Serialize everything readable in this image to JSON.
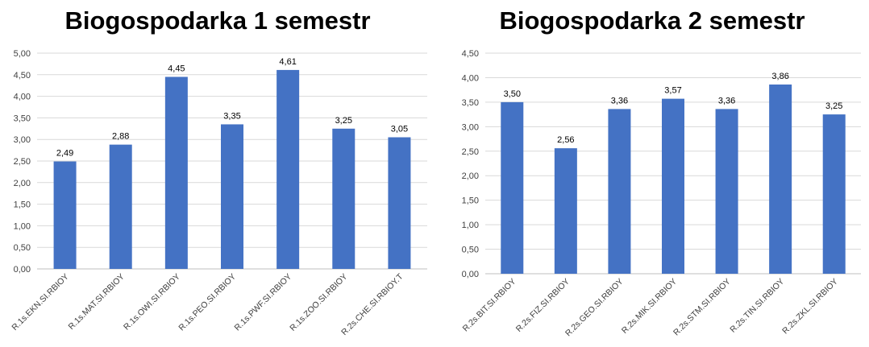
{
  "chart_data": [
    {
      "type": "bar",
      "title": "Biogospodarka 1 semestr",
      "categories": [
        "R.1s.EKN.SI.RBIOY",
        "R.1s.MAT.SI.RBIOY",
        "R.1s.OWI.SI.RBIOY",
        "R.1s.PEO.SI.RBIOY",
        "R.1s.PWF.SI.RBIOY",
        "R.1s.ZOO.SI.RBIOY",
        "R.2s.CHE.SI.RBIOY.T"
      ],
      "values": [
        2.49,
        2.88,
        4.45,
        3.35,
        4.61,
        3.25,
        3.05
      ],
      "value_labels": [
        "2,49",
        "2,88",
        "4,45",
        "3,35",
        "4,61",
        "3,25",
        "3,05"
      ],
      "ylim": [
        0,
        5
      ],
      "ytick_values": [
        0,
        0.5,
        1,
        1.5,
        2,
        2.5,
        3,
        3.5,
        4,
        4.5,
        5
      ],
      "ytick_labels": [
        "0,00",
        "0,50",
        "1,00",
        "1,50",
        "2,00",
        "2,50",
        "3,00",
        "3,50",
        "4,00",
        "4,50",
        "5,00"
      ],
      "grid": true,
      "bar_color": "#4472C4"
    },
    {
      "type": "bar",
      "title": "Biogospodarka 2 semestr",
      "categories": [
        "R.2s.BIT.SI.RBIOY",
        "R.2s.FIZ.SI.RBIOY",
        "R.2s.GEO.SI.RBIOY",
        "R.2s.MIK.SI.RBIOY",
        "R.2s.STM.SI.RBIOY",
        "R.2s.TIN.SI.RBIOY",
        "R.2s.ZKL.SI.RBIOY"
      ],
      "values": [
        3.5,
        2.56,
        3.36,
        3.57,
        3.36,
        3.86,
        3.25
      ],
      "value_labels": [
        "3,50",
        "2,56",
        "3,36",
        "3,57",
        "3,36",
        "3,86",
        "3,25"
      ],
      "ylim": [
        0,
        4.5
      ],
      "ytick_values": [
        0,
        0.5,
        1,
        1.5,
        2,
        2.5,
        3,
        3.5,
        4,
        4.5
      ],
      "ytick_labels": [
        "0,00",
        "0,50",
        "1,00",
        "1,50",
        "2,00",
        "2,50",
        "3,00",
        "3,50",
        "4,00",
        "4,50"
      ],
      "grid": true,
      "bar_color": "#4472C4"
    }
  ]
}
